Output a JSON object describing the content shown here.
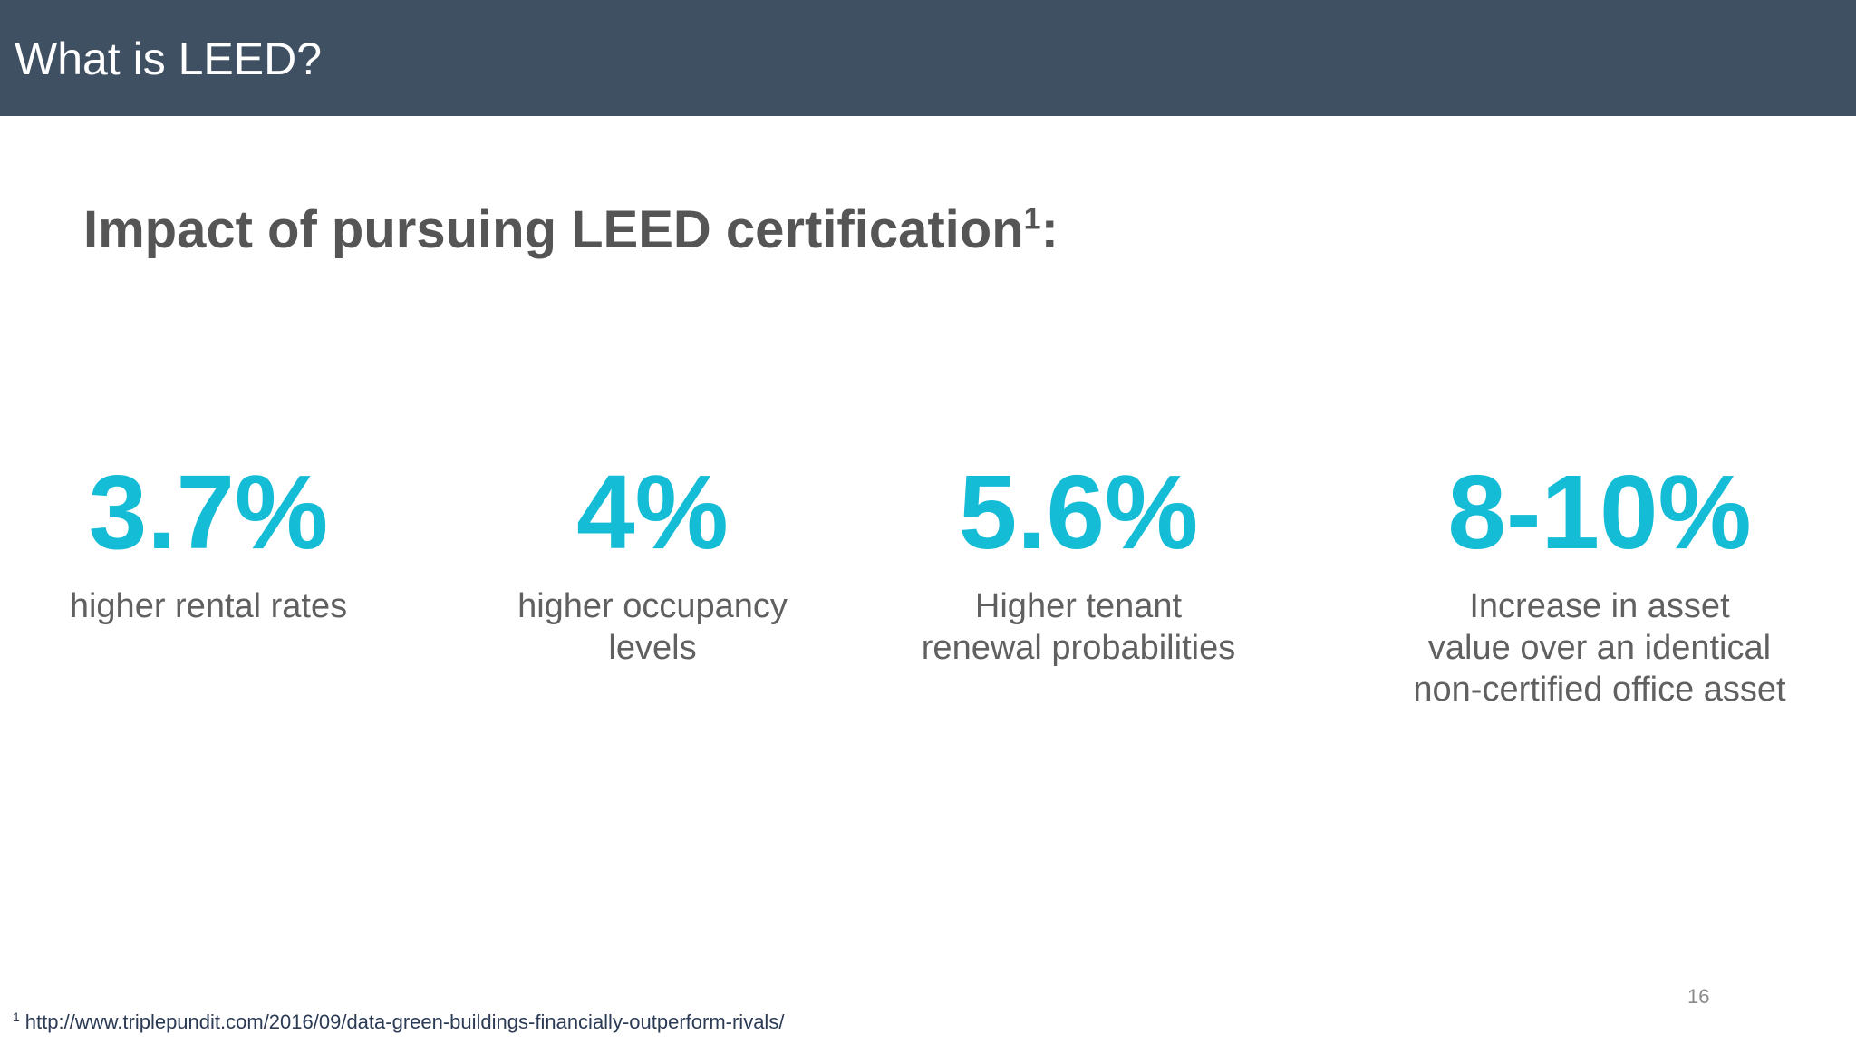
{
  "header": {
    "title": "What is LEED?"
  },
  "main": {
    "subtitle": "Impact of pursuing LEED certification",
    "subtitle_sup": "1",
    "subtitle_suffix": ":",
    "stats": [
      {
        "value": "3.7%",
        "description": "higher rental rates"
      },
      {
        "value": "4%",
        "description": "higher occupancy\nlevels"
      },
      {
        "value": "5.6%",
        "description": "Higher tenant\nrenewal probabilities"
      },
      {
        "value": "8-10%",
        "description": "Increase in asset\nvalue over an identical\nnon-certified office asset"
      }
    ]
  },
  "footer": {
    "footnote_marker": "1",
    "footnote_text": "http://www.triplepundit.com/2016/09/data-green-buildings-financially-outperform-rivals/",
    "page_number": "16"
  },
  "colors": {
    "header_background": "#3f5063",
    "accent": "#14bcd6",
    "subtitle_text": "#555555",
    "body_text": "#606060"
  }
}
